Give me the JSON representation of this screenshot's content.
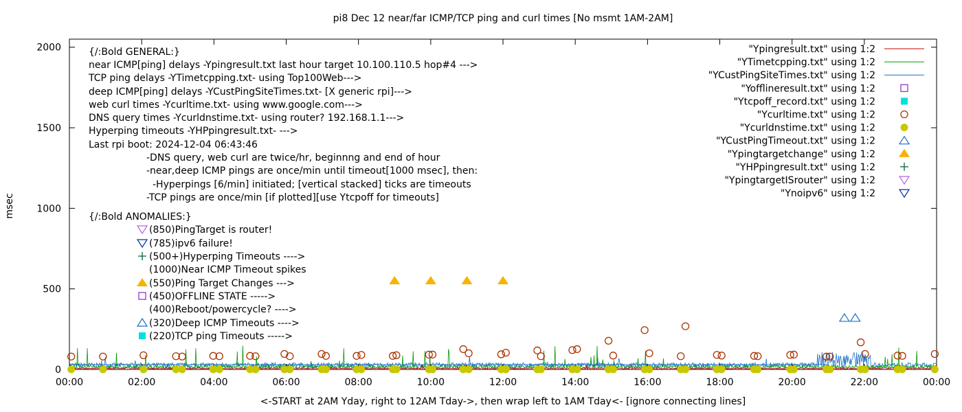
{
  "chart_data": {
    "type": "line",
    "title": "pi8 Dec 12  near/far ICMP/TCP ping and curl times [No msmt 1AM-2AM]",
    "xlabel": "<-START at 2AM Yday, right to 12AM Tday->, then wrap left to 1AM Tday<- [ignore connecting lines]",
    "ylabel": "msec",
    "xlim": [
      0,
      24
    ],
    "ylim": [
      0,
      2050
    ],
    "x_ticks": [
      "00:00",
      "02:00",
      "04:00",
      "06:00",
      "08:00",
      "10:00",
      "12:00",
      "14:00",
      "16:00",
      "18:00",
      "20:00",
      "22:00",
      "00:00"
    ],
    "y_ticks": [
      "0",
      "500",
      "1000",
      "1500",
      "2000"
    ],
    "y_tick_values": [
      0,
      500,
      1000,
      1500,
      2000
    ],
    "legend_position": "top-right",
    "legend": [
      {
        "label": "\"Ypingresult.txt\" using 1:2",
        "marker": "line",
        "color": "#cc0000"
      },
      {
        "label": "\"YTimetcpping.txt\" using 1:2",
        "marker": "line",
        "color": "#009900"
      },
      {
        "label": "\"YCustPingSiteTimes.txt\" using 1:2",
        "marker": "line",
        "color": "#1a6fc4"
      },
      {
        "label": "\"Yofflineresult.txt\" using 1:2",
        "marker": "open-square",
        "color": "#9933cc"
      },
      {
        "label": "\"Ytcpoff_record.txt\" using 1:2",
        "marker": "filled-square",
        "color": "#00e0e0"
      },
      {
        "label": "\"Ycurltime.txt\" using 1:2",
        "marker": "open-circle",
        "color": "#aa3300"
      },
      {
        "label": "\"Ycurldnstime.txt\" using 1:2",
        "marker": "filled-circle",
        "color": "#c8c800"
      },
      {
        "label": "\"YCustPingTimeout.txt\" using 1:2",
        "marker": "open-triangle-up",
        "color": "#1a6fc4"
      },
      {
        "label": "\"Ypingtargetchange\" using 1:2",
        "marker": "filled-triangle-up",
        "color": "#f5b400"
      },
      {
        "label": "\"YHPpingresult.txt\" using 1:2",
        "marker": "plus",
        "color": "#006633"
      },
      {
        "label": "\"YpingtargetISrouter\" using 1:2",
        "marker": "open-triangle-down",
        "color": "#b266e0"
      },
      {
        "label": "\"Ynoipv6\" using 1:2",
        "marker": "open-triangle-down",
        "color": "#003399"
      }
    ],
    "notes": [
      "{/:Bold GENERAL:}",
      "near ICMP[ping] delays -Ypingresult.txt last hour target 10.100.110.5 hop#4 --->",
      "TCP ping delays -YTimetcpping.txt- using Top100Web--->",
      "deep ICMP[ping] delays -YCustPingSiteTimes.txt- [X generic rpi]--->",
      "web curl times -Ycurltime.txt- using www.google.com--->",
      "DNS query times -Ycurldnstime.txt- using router? 192.168.1.1--->",
      "Hyperping timeouts -YHPpingresult.txt- --->",
      "Last rpi boot: 2024-12-04 06:43:46",
      "-DNS query, web curl are twice/hr, beginnng and end of hour",
      "-near,deep ICMP pings are once/min until timeout[1000 msec], then:",
      "-Hyperpings [6/min] initiated; [vertical stacked] ticks are timeouts",
      "-TCP pings are once/min [if plotted][use Ytcpoff for timeouts]",
      "{/:Bold ANOMALIES:}"
    ],
    "anomalies": [
      {
        "text": "(850)PingTarget is router!",
        "marker": "open-triangle-down",
        "color": "#b266e0"
      },
      {
        "text": "(785)ipv6 failure!",
        "marker": "open-triangle-down",
        "color": "#003399"
      },
      {
        "text": "(500+)Hyperping Timeouts ---->",
        "marker": "plus",
        "color": "#006633"
      },
      {
        "text": "(1000)Near ICMP Timeout spikes",
        "marker": "none",
        "color": ""
      },
      {
        "text": "(550)Ping Target Changes --->",
        "marker": "filled-triangle-up",
        "color": "#f5b400"
      },
      {
        "text": "(450)OFFLINE STATE ----->",
        "marker": "open-square",
        "color": "#9933cc"
      },
      {
        "text": "(400)Reboot/powercycle? ---->",
        "marker": "none",
        "color": ""
      },
      {
        "text": "(320)Deep ICMP Timeouts ---->",
        "marker": "open-triangle-up",
        "color": "#1a6fc4"
      },
      {
        "text": "(220)TCP ping Timeouts ----->",
        "marker": "filled-square",
        "color": "#00e0e0"
      }
    ],
    "series": [
      {
        "name": "\"Ycurltime.txt\" using 1:2",
        "marker": "open-circle",
        "color": "#aa3300",
        "points": [
          [
            0.05,
            80
          ],
          [
            0.93,
            80
          ],
          [
            2.05,
            88
          ],
          [
            2.95,
            82
          ],
          [
            3.12,
            80
          ],
          [
            3.98,
            84
          ],
          [
            4.15,
            82
          ],
          [
            5.0,
            84
          ],
          [
            5.15,
            82
          ],
          [
            5.95,
            96
          ],
          [
            6.1,
            82
          ],
          [
            6.98,
            96
          ],
          [
            7.1,
            84
          ],
          [
            7.95,
            84
          ],
          [
            8.08,
            90
          ],
          [
            8.95,
            84
          ],
          [
            9.05,
            88
          ],
          [
            9.95,
            92
          ],
          [
            10.05,
            92
          ],
          [
            10.9,
            126
          ],
          [
            11.05,
            100
          ],
          [
            11.95,
            94
          ],
          [
            12.08,
            104
          ],
          [
            12.95,
            118
          ],
          [
            13.05,
            82
          ],
          [
            13.92,
            120
          ],
          [
            14.05,
            126
          ],
          [
            14.92,
            178
          ],
          [
            15.05,
            86
          ],
          [
            15.92,
            244
          ],
          [
            16.05,
            100
          ],
          [
            16.92,
            82
          ],
          [
            17.05,
            268
          ],
          [
            17.92,
            90
          ],
          [
            18.05,
            86
          ],
          [
            18.95,
            84
          ],
          [
            19.05,
            82
          ],
          [
            19.95,
            90
          ],
          [
            20.05,
            92
          ],
          [
            20.95,
            80
          ],
          [
            21.05,
            80
          ],
          [
            21.9,
            168
          ],
          [
            22.02,
            96
          ],
          [
            22.92,
            86
          ],
          [
            23.05,
            84
          ],
          [
            23.95,
            96
          ]
        ]
      },
      {
        "name": "\"Ycurldnstime.txt\" using 1:2",
        "marker": "filled-circle",
        "color": "#c8c800",
        "points": [
          [
            0.05,
            0
          ],
          [
            0.93,
            0
          ],
          [
            2.05,
            0
          ],
          [
            2.95,
            0
          ],
          [
            3.12,
            0
          ],
          [
            3.98,
            0
          ],
          [
            4.15,
            0
          ],
          [
            5.0,
            0
          ],
          [
            5.15,
            0
          ],
          [
            5.95,
            0
          ],
          [
            6.1,
            0
          ],
          [
            6.98,
            0
          ],
          [
            7.1,
            0
          ],
          [
            7.95,
            0
          ],
          [
            8.08,
            0
          ],
          [
            8.95,
            0
          ],
          [
            9.05,
            0
          ],
          [
            9.95,
            0
          ],
          [
            10.05,
            0
          ],
          [
            10.9,
            0
          ],
          [
            11.05,
            0
          ],
          [
            11.95,
            0
          ],
          [
            12.08,
            0
          ],
          [
            12.95,
            0
          ],
          [
            13.05,
            0
          ],
          [
            13.92,
            0
          ],
          [
            14.05,
            0
          ],
          [
            14.92,
            0
          ],
          [
            15.05,
            0
          ],
          [
            15.92,
            0
          ],
          [
            16.05,
            0
          ],
          [
            16.92,
            0
          ],
          [
            17.05,
            0
          ],
          [
            17.92,
            0
          ],
          [
            18.05,
            0
          ],
          [
            18.95,
            0
          ],
          [
            19.05,
            0
          ],
          [
            19.95,
            0
          ],
          [
            20.05,
            0
          ],
          [
            20.95,
            0
          ],
          [
            21.05,
            0
          ],
          [
            21.9,
            0
          ],
          [
            22.02,
            0
          ],
          [
            22.92,
            0
          ],
          [
            23.05,
            0
          ],
          [
            23.95,
            0
          ]
        ]
      },
      {
        "name": "\"Ypingtargetchange\" using 1:2",
        "marker": "filled-triangle-up",
        "color": "#f5b400",
        "points": [
          [
            9.0,
            550
          ],
          [
            10.0,
            550
          ],
          [
            11.0,
            550
          ],
          [
            12.0,
            550
          ]
        ]
      },
      {
        "name": "\"YCustPingTimeout.txt\" using 1:2",
        "marker": "open-triangle-up",
        "color": "#1a6fc4",
        "points": [
          [
            21.45,
            320
          ],
          [
            21.75,
            320
          ]
        ]
      }
    ]
  }
}
